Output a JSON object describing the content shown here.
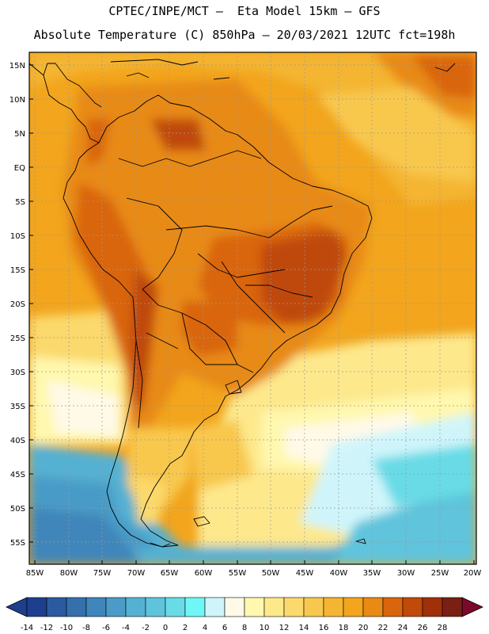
{
  "header": {
    "line1": "CPTEC/INPE/MCT –  Eta Model 15km – GFS",
    "line2": "Absolute Temperature (C) 850hPa – 20/03/2021 12UTC fct=198h"
  },
  "axes": {
    "lat_labels": [
      "15N",
      "10N",
      "5N",
      "EQ",
      "5S",
      "10S",
      "15S",
      "20S",
      "25S",
      "30S",
      "35S",
      "40S",
      "45S",
      "50S",
      "55S"
    ],
    "lon_labels": [
      "85W",
      "80W",
      "75W",
      "70W",
      "65W",
      "60W",
      "55W",
      "50W",
      "45W",
      "40W",
      "35W",
      "30W",
      "25W",
      "20W"
    ]
  },
  "colorbar": {
    "ticks": [
      "-14",
      "-12",
      "-10",
      "-8",
      "-6",
      "-4",
      "-2",
      "0",
      "2",
      "4",
      "6",
      "8",
      "10",
      "12",
      "14",
      "16",
      "18",
      "20",
      "22",
      "24",
      "26",
      "28"
    ],
    "colors": [
      "#1d3f8e",
      "#2b5aa0",
      "#3570ad",
      "#3f86ba",
      "#4a9bc7",
      "#55b1d2",
      "#5ec4dc",
      "#68dbe6",
      "#6ff7f7",
      "#cff5fb",
      "#fff9e8",
      "#fff8ae",
      "#fde88c",
      "#fbd96c",
      "#f8c84e",
      "#f4b532",
      "#f2a51d",
      "#e88a14",
      "#d9650c",
      "#bf4a0a",
      "#a03009",
      "#7a1f13"
    ]
  },
  "theme": {
    "ocean_warm": "#f2a51d",
    "land_hot": "#d9650c",
    "cold_ocean": "#4a9bc7"
  }
}
